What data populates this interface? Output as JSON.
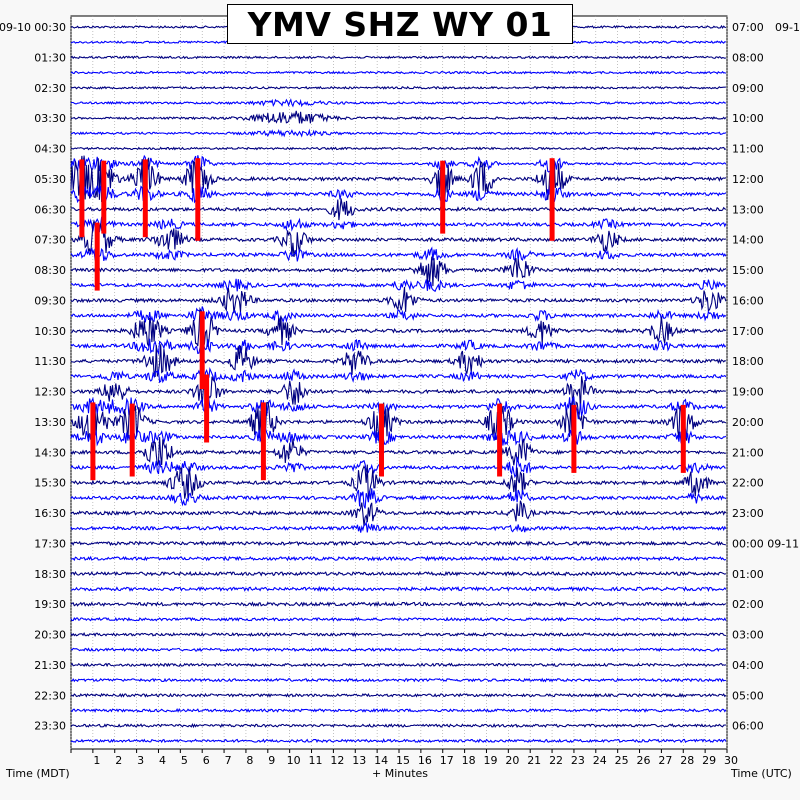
{
  "chart_data": {
    "type": "line",
    "title": "YMV SHZ WY 01",
    "left_date_label": "09-10",
    "right_date_label": "09-1",
    "right_date_change_suffix": "09-11",
    "xlabel": "+ Minutes",
    "left_axis_title": "Time (MDT)",
    "right_axis_title": "Time (UTC)",
    "xlim": [
      0,
      30
    ],
    "x_ticks": [
      1,
      2,
      3,
      4,
      5,
      6,
      7,
      8,
      9,
      10,
      11,
      12,
      13,
      14,
      15,
      16,
      17,
      18,
      19,
      20,
      21,
      22,
      23,
      24,
      25,
      26,
      27,
      28,
      29,
      30
    ],
    "rows_per_hour": 2,
    "trace_colors": [
      "#000080",
      "#0000ff",
      "#ff0000"
    ],
    "left_labels": [
      "00:30",
      "01:30",
      "02:30",
      "03:30",
      "04:30",
      "05:30",
      "06:30",
      "07:30",
      "08:30",
      "09:30",
      "10:30",
      "11:30",
      "12:30",
      "13:30",
      "14:30",
      "15:30",
      "16:30",
      "17:30",
      "18:30",
      "19:30",
      "20:30",
      "21:30",
      "22:30",
      "23:30"
    ],
    "right_labels": [
      "07:00",
      "08:00",
      "09:00",
      "10:00",
      "11:00",
      "12:00",
      "13:00",
      "14:00",
      "15:00",
      "16:00",
      "17:00",
      "18:00",
      "19:00",
      "20:00",
      "21:00",
      "22:00",
      "23:00",
      "00:00",
      "01:00",
      "02:00",
      "03:00",
      "04:00",
      "05:00",
      "06:00"
    ],
    "events": [
      {
        "row": 6,
        "minute": 10.0,
        "amp": 1.0,
        "width": 1.6
      },
      {
        "row": 10,
        "minute": 0.5,
        "amp": 3.2,
        "width": 0.6
      },
      {
        "row": 10,
        "minute": 1.5,
        "amp": 3.0,
        "width": 0.5
      },
      {
        "row": 10,
        "minute": 3.4,
        "amp": 3.2,
        "width": 0.5
      },
      {
        "row": 10,
        "minute": 5.8,
        "amp": 3.4,
        "width": 0.5
      },
      {
        "row": 10,
        "minute": 17.0,
        "amp": 3.0,
        "width": 0.4
      },
      {
        "row": 10,
        "minute": 18.8,
        "amp": 2.6,
        "width": 0.5
      },
      {
        "row": 10,
        "minute": 22.0,
        "amp": 3.4,
        "width": 0.5
      },
      {
        "row": 12,
        "minute": 12.4,
        "amp": 1.6,
        "width": 0.5
      },
      {
        "row": 14,
        "minute": 1.2,
        "amp": 2.8,
        "width": 0.6
      },
      {
        "row": 14,
        "minute": 4.5,
        "amp": 1.8,
        "width": 0.6
      },
      {
        "row": 14,
        "minute": 10.2,
        "amp": 2.4,
        "width": 0.5
      },
      {
        "row": 14,
        "minute": 24.5,
        "amp": 1.6,
        "width": 0.5
      },
      {
        "row": 16,
        "minute": 16.5,
        "amp": 2.2,
        "width": 0.6
      },
      {
        "row": 16,
        "minute": 20.5,
        "amp": 2.0,
        "width": 0.5
      },
      {
        "row": 18,
        "minute": 7.5,
        "amp": 2.0,
        "width": 0.6
      },
      {
        "row": 18,
        "minute": 15.2,
        "amp": 2.0,
        "width": 0.5
      },
      {
        "row": 18,
        "minute": 29.2,
        "amp": 1.8,
        "width": 0.5
      },
      {
        "row": 20,
        "minute": 3.5,
        "amp": 2.4,
        "width": 0.6
      },
      {
        "row": 20,
        "minute": 6.0,
        "amp": 3.2,
        "width": 0.5
      },
      {
        "row": 20,
        "minute": 9.6,
        "amp": 2.0,
        "width": 0.5
      },
      {
        "row": 20,
        "minute": 21.5,
        "amp": 1.8,
        "width": 0.5
      },
      {
        "row": 20,
        "minute": 27.0,
        "amp": 1.8,
        "width": 0.5
      },
      {
        "row": 22,
        "minute": 4.0,
        "amp": 2.4,
        "width": 0.6
      },
      {
        "row": 22,
        "minute": 7.8,
        "amp": 2.2,
        "width": 0.5
      },
      {
        "row": 22,
        "minute": 13.0,
        "amp": 2.0,
        "width": 0.5
      },
      {
        "row": 22,
        "minute": 18.2,
        "amp": 1.8,
        "width": 0.5
      },
      {
        "row": 24,
        "minute": 2.0,
        "amp": 2.0,
        "width": 0.5
      },
      {
        "row": 24,
        "minute": 6.2,
        "amp": 2.8,
        "width": 0.5
      },
      {
        "row": 24,
        "minute": 10.2,
        "amp": 2.0,
        "width": 0.5
      },
      {
        "row": 24,
        "minute": 23.2,
        "amp": 2.4,
        "width": 0.5
      },
      {
        "row": 26,
        "minute": 1.0,
        "amp": 3.2,
        "width": 0.6
      },
      {
        "row": 26,
        "minute": 2.8,
        "amp": 3.0,
        "width": 0.5
      },
      {
        "row": 26,
        "minute": 8.8,
        "amp": 3.2,
        "width": 0.5
      },
      {
        "row": 26,
        "minute": 14.2,
        "amp": 3.0,
        "width": 0.5
      },
      {
        "row": 26,
        "minute": 19.6,
        "amp": 3.0,
        "width": 0.5
      },
      {
        "row": 26,
        "minute": 23.0,
        "amp": 2.8,
        "width": 0.5
      },
      {
        "row": 26,
        "minute": 28.0,
        "amp": 2.8,
        "width": 0.5
      },
      {
        "row": 28,
        "minute": 4.0,
        "amp": 2.4,
        "width": 0.6
      },
      {
        "row": 28,
        "minute": 10.0,
        "amp": 2.0,
        "width": 0.5
      },
      {
        "row": 28,
        "minute": 20.5,
        "amp": 2.2,
        "width": 0.5
      },
      {
        "row": 30,
        "minute": 5.2,
        "amp": 2.4,
        "width": 0.6
      },
      {
        "row": 30,
        "minute": 13.5,
        "amp": 2.6,
        "width": 0.5
      },
      {
        "row": 30,
        "minute": 20.4,
        "amp": 2.2,
        "width": 0.4
      },
      {
        "row": 30,
        "minute": 28.6,
        "amp": 1.8,
        "width": 0.5
      },
      {
        "row": 32,
        "minute": 13.5,
        "amp": 1.8,
        "width": 0.5
      },
      {
        "row": 32,
        "minute": 20.5,
        "amp": 1.6,
        "width": 0.4
      }
    ]
  }
}
